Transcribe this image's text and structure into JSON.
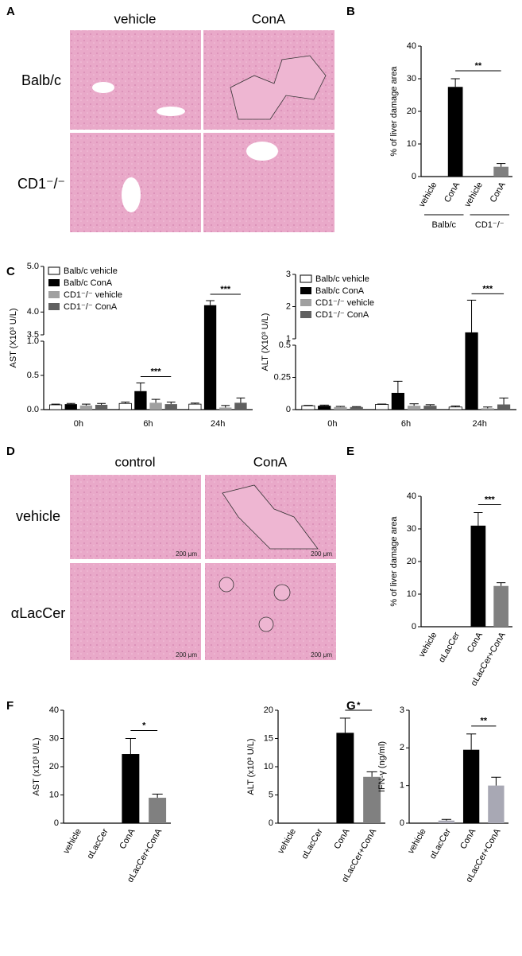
{
  "panels": {
    "A": {
      "letter": "A",
      "columns": [
        "vehicle",
        "ConA"
      ],
      "rows": [
        "Balb/c",
        "CD1⁻/⁻"
      ]
    },
    "D": {
      "letter": "D",
      "columns": [
        "control",
        "ConA"
      ],
      "rows": [
        "vehicle",
        "αLacCer"
      ],
      "scale_bar": "200 μm"
    }
  },
  "chart_data": [
    {
      "type": "bar",
      "panel": "B",
      "ylabel": "% of liver damage area",
      "categories": [
        "vehicle",
        "ConA",
        "vehicle",
        "ConA"
      ],
      "groups": [
        "Balb/c",
        "CD1⁻/⁻"
      ],
      "values": [
        0,
        27.5,
        0,
        3
      ],
      "errors": [
        0,
        2.5,
        0,
        1
      ],
      "colors": [
        "#000000",
        "#000000",
        "#808080",
        "#808080"
      ],
      "ylim": [
        0,
        40
      ],
      "yticks": [
        0,
        10,
        20,
        30,
        40
      ],
      "significance": "**"
    },
    {
      "type": "grouped_bar",
      "panel": "C",
      "ylabel": "AST (X10³ U/L)",
      "categories": [
        "0h",
        "6h",
        "24h"
      ],
      "series": [
        {
          "name": "Balb/c vehicle",
          "color": "#ffffff",
          "values": [
            0.07,
            0.09,
            0.08
          ],
          "errors": [
            0.01,
            0.02,
            0.015
          ]
        },
        {
          "name": "Balb/c ConA",
          "color": "#000000",
          "values": [
            0.08,
            0.27,
            4.15
          ],
          "errors": [
            0.01,
            0.12,
            0.1
          ]
        },
        {
          "name": "CD1⁻/⁻ vehicle",
          "color": "#a0a0a0",
          "values": [
            0.06,
            0.1,
            0.03
          ],
          "errors": [
            0.02,
            0.05,
            0.03
          ]
        },
        {
          "name": "CD1⁻/⁻ ConA",
          "color": "#606060",
          "values": [
            0.07,
            0.08,
            0.1
          ],
          "errors": [
            0.02,
            0.03,
            0.07
          ]
        }
      ],
      "ylim": [
        0,
        5
      ],
      "ybreaks": [
        [
          0,
          1
        ],
        [
          3.5,
          5
        ]
      ],
      "yticks": [
        {
          "value": 0,
          "label": "0.0"
        },
        0.5,
        {
          "value": 1,
          "label": "1.0"
        },
        3.5,
        {
          "value": 4,
          "label": "4.0"
        },
        {
          "value": 5,
          "label": "5.0"
        }
      ],
      "significance": [
        null,
        "***",
        "***"
      ]
    },
    {
      "type": "grouped_bar",
      "ylabel": "ALT (X10³ U/L)",
      "categories": [
        "0h",
        "6h",
        "24h"
      ],
      "series": [
        {
          "name": "Balb/c vehicle",
          "color": "#ffffff",
          "values": [
            0.03,
            0.04,
            0.02
          ],
          "errors": [
            0.003,
            0.003,
            0.008
          ]
        },
        {
          "name": "Balb/c ConA",
          "color": "#000000",
          "values": [
            0.03,
            0.13,
            1.2
          ],
          "errors": [
            0.005,
            0.09,
            1.0
          ]
        },
        {
          "name": "CD1⁻/⁻ vehicle",
          "color": "#a0a0a0",
          "values": [
            0.02,
            0.03,
            0.01
          ],
          "errors": [
            0.005,
            0.015,
            0.01
          ]
        },
        {
          "name": "CD1⁻/⁻ ConA",
          "color": "#606060",
          "values": [
            0.02,
            0.03,
            0.04
          ],
          "errors": [
            0.003,
            0.008,
            0.05
          ]
        }
      ],
      "ylim": [
        0,
        3
      ],
      "ybreaks": [
        [
          0,
          0.5
        ],
        [
          1,
          3
        ]
      ],
      "yticks": [
        0,
        0.25,
        0.5,
        1,
        2,
        3
      ],
      "significance": [
        null,
        null,
        "***"
      ]
    },
    {
      "type": "bar",
      "panel": "E",
      "ylabel": "% of liver damage area",
      "categories": [
        "vehicle",
        "αLacCer",
        "ConA",
        "αLacCer+ConA"
      ],
      "values": [
        0,
        0,
        31,
        12.5
      ],
      "errors": [
        0,
        0,
        4,
        1
      ],
      "colors": [
        "#000000",
        "#000000",
        "#000000",
        "#808080"
      ],
      "ylim": [
        0,
        40
      ],
      "yticks": [
        0,
        10,
        20,
        30,
        40
      ],
      "significance": "***"
    },
    {
      "type": "bar",
      "panel": "F",
      "ylabel": "AST (x10³ U/L)",
      "categories": [
        "vehicle",
        "αLacCer",
        "ConA",
        "αLacCer+ConA"
      ],
      "values": [
        0,
        0,
        24.5,
        9
      ],
      "errors": [
        0,
        0,
        5.5,
        1.3
      ],
      "colors": [
        "#000000",
        "#000000",
        "#000000",
        "#808080"
      ],
      "ylim": [
        0,
        40
      ],
      "yticks": [
        0,
        10,
        20,
        30,
        40
      ],
      "significance": "*"
    },
    {
      "type": "bar",
      "ylabel": "ALT (x10³ U/L)",
      "categories": [
        "vehicle",
        "αLacCer",
        "ConA",
        "αLacCer+ConA"
      ],
      "values": [
        0,
        0,
        16,
        8.2
      ],
      "errors": [
        0,
        0,
        2.6,
        0.9
      ],
      "colors": [
        "#000000",
        "#000000",
        "#000000",
        "#808080"
      ],
      "ylim": [
        0,
        20
      ],
      "yticks": [
        0,
        5,
        10,
        15,
        20
      ],
      "significance": "*"
    },
    {
      "type": "bar",
      "panel": "G",
      "ylabel": "IFN-γ (ng/ml)",
      "categories": [
        "vehicle",
        "αLacCer",
        "ConA",
        "αLacCer+ConA"
      ],
      "values": [
        0,
        0.07,
        1.95,
        1.0
      ],
      "errors": [
        0,
        0.03,
        0.42,
        0.22
      ],
      "colors": [
        "#000000",
        "#a8a8b4",
        "#000000",
        "#a8a8b4"
      ],
      "ylim": [
        0,
        3
      ],
      "yticks": [
        0,
        1,
        2,
        3
      ],
      "significance": "**"
    }
  ]
}
